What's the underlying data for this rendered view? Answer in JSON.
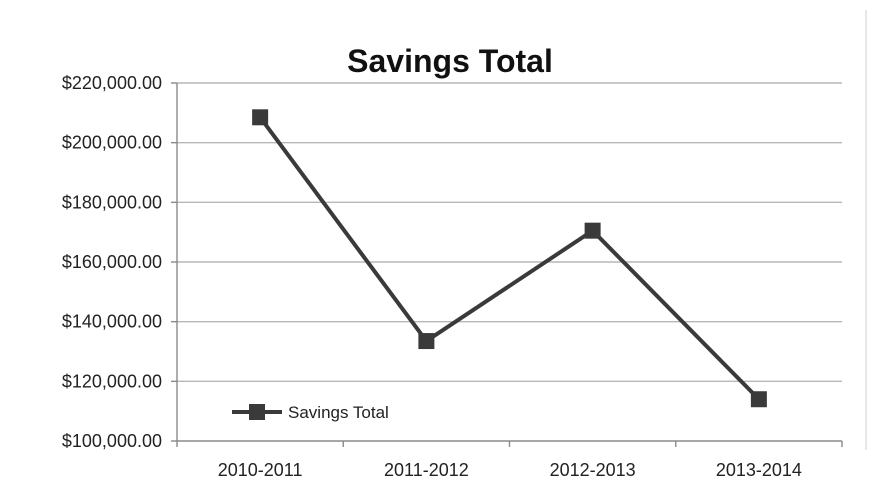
{
  "chart_data": {
    "type": "line",
    "title": "Savings Total",
    "xlabel": "",
    "ylabel": "",
    "categories": [
      "2010-2011",
      "2011-2012",
      "2012-2013",
      "2013-2014"
    ],
    "series": [
      {
        "name": "Savings Total",
        "values": [
          208500,
          133500,
          170500,
          114000
        ],
        "color": "#3a3a3a"
      }
    ],
    "ylim": [
      100000,
      220000
    ],
    "y_ticks": [
      100000,
      120000,
      140000,
      160000,
      180000,
      200000,
      220000
    ],
    "y_tick_labels": [
      "$100,000.00",
      "$120,000.00",
      "$140,000.00",
      "$160,000.00",
      "$180,000.00",
      "$200,000.00",
      "$220,000.00"
    ],
    "grid": true,
    "legend_position": "bottom-left",
    "marker": "square"
  }
}
